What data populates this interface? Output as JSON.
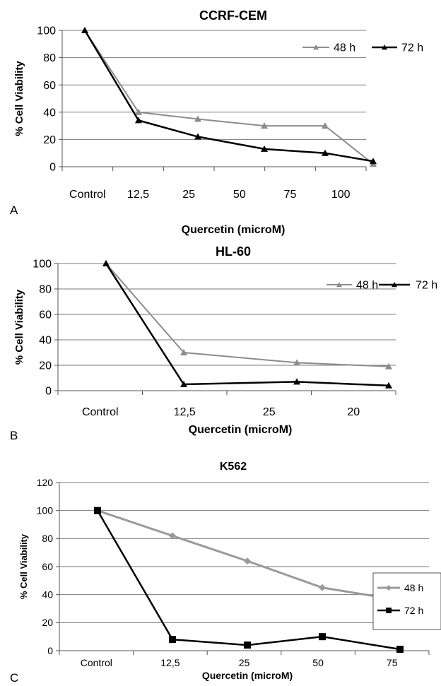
{
  "chart_data": [
    {
      "panel_label": "A",
      "type": "line",
      "title": "CCRF-CEM",
      "xlabel": "Quercetin (microM)",
      "ylabel": "% Cell Viability",
      "categories": [
        "Control",
        "12,5",
        "25",
        "50",
        "75",
        "100"
      ],
      "ylim": [
        0,
        100
      ],
      "yticks": [
        "0",
        "20",
        "40",
        "60",
        "80",
        "100"
      ],
      "grid": true,
      "legend_position": "top-right",
      "series": [
        {
          "name": "48 h",
          "color": "#8c8c8c",
          "marker": "triangle",
          "values": [
            100,
            40,
            35,
            30,
            30,
            2
          ]
        },
        {
          "name": "72 h",
          "color": "#000000",
          "marker": "triangle",
          "values": [
            100,
            34,
            22,
            13,
            10,
            4
          ]
        }
      ]
    },
    {
      "panel_label": "B",
      "type": "line",
      "title": "HL-60",
      "xlabel": "Quercetin (microM)",
      "ylabel": "% Cell Viability",
      "categories": [
        "Control",
        "12,5",
        "25",
        "20"
      ],
      "ylim": [
        0,
        100
      ],
      "yticks": [
        "0",
        "20",
        "40",
        "60",
        "80",
        "100"
      ],
      "grid": true,
      "legend_position": "top-right",
      "series": [
        {
          "name": "48 h",
          "color": "#8c8c8c",
          "marker": "triangle",
          "values": [
            100,
            30,
            22,
            19
          ]
        },
        {
          "name": "72 h",
          "color": "#000000",
          "marker": "triangle",
          "values": [
            100,
            5,
            7,
            4
          ]
        }
      ]
    },
    {
      "panel_label": "C",
      "type": "line",
      "title": "K562",
      "xlabel": "Quercetin (microM)",
      "ylabel": "% Cell Viability",
      "categories": [
        "Control",
        "12,5",
        "25",
        "50",
        "75"
      ],
      "ylim": [
        0,
        120
      ],
      "yticks": [
        "0",
        "20",
        "40",
        "60",
        "80",
        "100",
        "120"
      ],
      "grid": true,
      "legend_position": "top-right",
      "series": [
        {
          "name": "48 h",
          "color": "#9a9a9a",
          "marker": "diamond",
          "values": [
            100,
            82,
            64,
            45,
            36
          ]
        },
        {
          "name": "72 h",
          "color": "#000000",
          "marker": "square",
          "values": [
            100,
            8,
            4,
            10,
            1
          ]
        }
      ]
    }
  ]
}
